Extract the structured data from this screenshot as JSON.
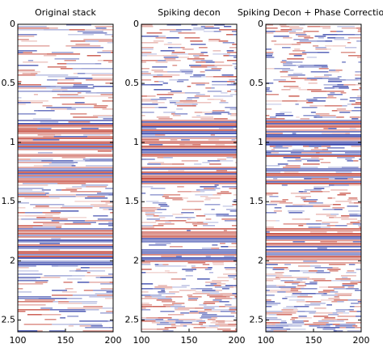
{
  "chart_data": [
    {
      "type": "image",
      "title": "Original stack",
      "xlim": [
        100,
        200
      ],
      "xticks": [
        100,
        150,
        200
      ],
      "ylim": [
        0,
        2.6
      ],
      "yticks": [
        0,
        0.5,
        1,
        1.5,
        2,
        2.5
      ],
      "invert_y": true
    },
    {
      "type": "image",
      "title": "Spiking decon",
      "xlim": [
        100,
        200
      ],
      "xticks": [
        100,
        150,
        200
      ],
      "ylim": [
        0,
        2.6
      ],
      "yticks": [
        0,
        0.5,
        1,
        1.5,
        2,
        2.5
      ],
      "invert_y": true
    },
    {
      "type": "image",
      "title": "Spiking Decon + Phase Correction",
      "xlim": [
        100,
        200
      ],
      "xticks": [
        100,
        150,
        200
      ],
      "ylim": [
        0,
        2.6
      ],
      "yticks": [
        0,
        0.5,
        1,
        1.5,
        2,
        2.5
      ],
      "invert_y": true
    }
  ]
}
